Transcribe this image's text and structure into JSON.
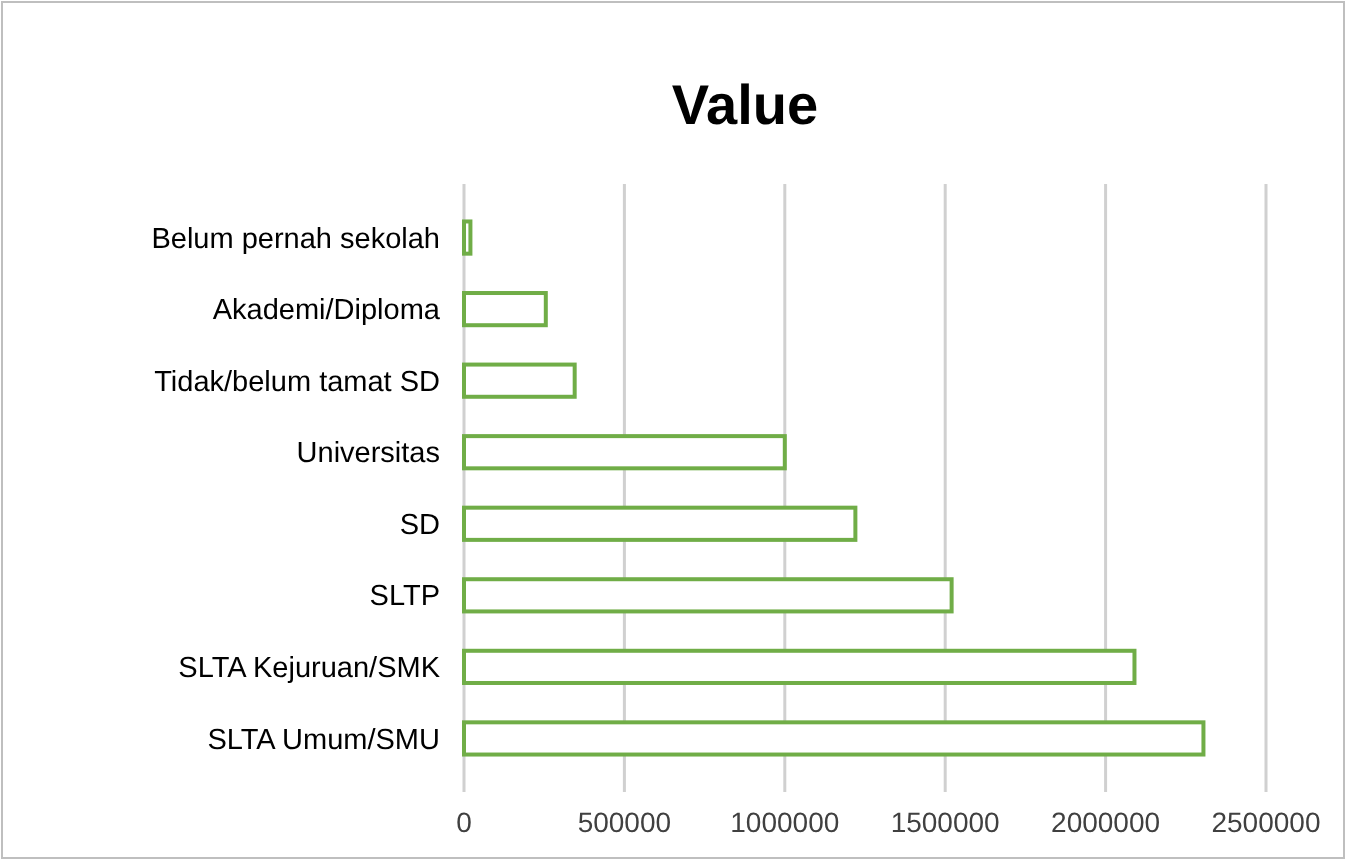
{
  "chart_data": {
    "type": "bar",
    "orientation": "horizontal",
    "title": "Value",
    "categories": [
      "Belum pernah sekolah",
      "Akademi/Diploma",
      "Tidak/belum tamat SD",
      "Universitas",
      "SD",
      "SLTP",
      "SLTA Kejuruan/SMK",
      "SLTA Umum/SMU"
    ],
    "values": [
      20000,
      255000,
      345000,
      1000000,
      1220000,
      1520000,
      2090000,
      2305000
    ],
    "color": "#70ad47",
    "xlim": [
      0,
      2500000
    ],
    "xticks": [
      0,
      500000,
      1000000,
      1500000,
      2000000,
      2500000
    ],
    "grid": "x"
  }
}
